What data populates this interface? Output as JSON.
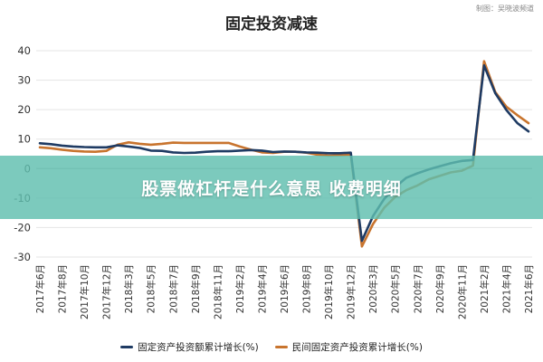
{
  "header": {
    "title": "固定投资减速",
    "credit": "制图：吴晓波频道"
  },
  "banner": {
    "text": "股票做杠杆是什么意思 收费明细"
  },
  "legend": {
    "items": [
      {
        "label": "固定资产投资额累计增长(%)",
        "color": "#1f3b63",
        "icon": "line-swatch"
      },
      {
        "label": "民间固定资产投资累计增长(%)",
        "color": "#c8742e",
        "icon": "line-swatch"
      }
    ]
  },
  "chart_data": {
    "type": "line",
    "title": "固定投资减速",
    "xlabel": "",
    "ylabel": "",
    "ylim": [
      -30,
      40
    ],
    "yticks": [
      40,
      30,
      20,
      10,
      0,
      -10,
      -20,
      -30
    ],
    "grid": true,
    "legend_position": "bottom",
    "tick_labels": [
      "2017年6月",
      "2017年8月",
      "2017年10月",
      "2017年12月",
      "2018年3月",
      "2018年5月",
      "2018年7月",
      "2018年9月",
      "2018年11月",
      "2019年2月",
      "2019年4月",
      "2019年6月",
      "2019年8月",
      "2019年10月",
      "2019年12月",
      "2020年3月",
      "2020年5月",
      "2020年7月",
      "2020年9月",
      "2020年11月",
      "2021年2月",
      "2021年4月",
      "2021年6月"
    ],
    "categories": [
      "2017年6月",
      "2017年7月",
      "2017年8月",
      "2017年9月",
      "2017年10月",
      "2017年11月",
      "2017年12月",
      "2018年2月",
      "2018年3月",
      "2018年4月",
      "2018年5月",
      "2018年6月",
      "2018年7月",
      "2018年8月",
      "2018年9月",
      "2018年10月",
      "2018年11月",
      "2018年12月",
      "2019年2月",
      "2019年3月",
      "2019年4月",
      "2019年5月",
      "2019年6月",
      "2019年7月",
      "2019年8月",
      "2019年9月",
      "2019年10月",
      "2019年11月",
      "2019年12月",
      "2020年2月",
      "2020年3月",
      "2020年4月",
      "2020年5月",
      "2020年6月",
      "2020年7月",
      "2020年8月",
      "2020年9月",
      "2020年10月",
      "2020年11月",
      "2020年12月",
      "2021年2月",
      "2021年3月",
      "2021年4月",
      "2021年5月",
      "2021年6月"
    ],
    "series": [
      {
        "name": "固定资产投资额累计增长(%)",
        "color": "#1f3b63",
        "values": [
          8.6,
          8.3,
          7.8,
          7.5,
          7.3,
          7.2,
          7.2,
          7.9,
          7.5,
          7.0,
          6.1,
          6.0,
          5.5,
          5.3,
          5.4,
          5.7,
          5.9,
          5.9,
          6.1,
          6.3,
          6.1,
          5.6,
          5.8,
          5.7,
          5.5,
          5.4,
          5.2,
          5.2,
          5.4,
          -24.5,
          -16.1,
          -10.3,
          -6.3,
          -3.1,
          -1.6,
          -0.3,
          0.8,
          1.8,
          2.6,
          2.9,
          35.0,
          25.6,
          19.9,
          15.4,
          12.6
        ]
      },
      {
        "name": "民间固定资产投资累计增长(%)",
        "color": "#c8742e",
        "values": [
          7.2,
          6.9,
          6.4,
          6.0,
          5.8,
          5.7,
          6.0,
          8.1,
          8.9,
          8.4,
          8.1,
          8.4,
          8.8,
          8.7,
          8.7,
          8.7,
          8.7,
          8.7,
          7.5,
          6.4,
          5.5,
          5.3,
          5.7,
          5.7,
          5.4,
          4.7,
          4.4,
          4.5,
          4.7,
          -26.4,
          -18.8,
          -13.3,
          -9.6,
          -7.3,
          -5.7,
          -3.7,
          -2.5,
          -1.3,
          -0.7,
          1.0,
          36.4,
          26.0,
          21.0,
          18.1,
          15.4
        ]
      }
    ]
  }
}
